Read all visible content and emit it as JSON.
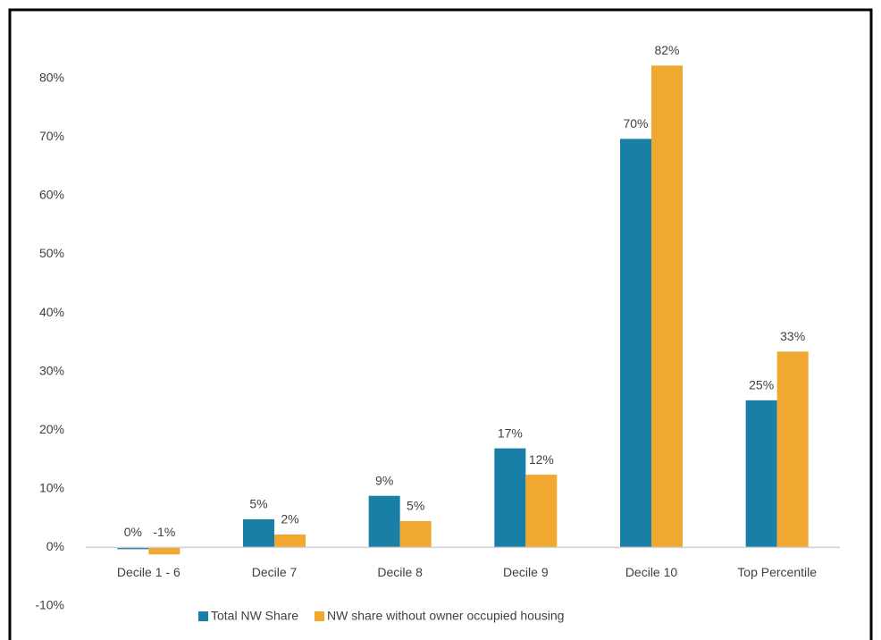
{
  "chart_data": {
    "type": "bar",
    "categories": [
      "Decile 1 - 6",
      "Decile 7",
      "Decile 8",
      "Decile 9",
      "Decile 10",
      "Top Percentile"
    ],
    "series": [
      {
        "name": "Total NW Share",
        "color": "#1a7fa6",
        "values": [
          -0.3,
          4.8,
          8.8,
          16.9,
          69.7,
          25.1
        ],
        "value_labels": [
          "0%",
          "5%",
          "9%",
          "17%",
          "70%",
          "25%"
        ]
      },
      {
        "name": "NW share without owner occupied housing",
        "color": "#f0a830",
        "values": [
          -1.2,
          2.2,
          4.5,
          12.4,
          82.2,
          33.4
        ],
        "value_labels": [
          "-1%",
          "2%",
          "5%",
          "12%",
          "82%",
          "33%"
        ]
      }
    ],
    "ylim": [
      -10,
      85
    ],
    "yticks": [
      {
        "value": -10,
        "label": "-10%"
      },
      {
        "value": 0,
        "label": "0%"
      },
      {
        "value": 10,
        "label": "10%"
      },
      {
        "value": 20,
        "label": "20%"
      },
      {
        "value": 30,
        "label": "30%"
      },
      {
        "value": 40,
        "label": "40%"
      },
      {
        "value": 50,
        "label": "50%"
      },
      {
        "value": 60,
        "label": "60%"
      },
      {
        "value": 70,
        "label": "70%"
      },
      {
        "value": 80,
        "label": "80%"
      }
    ],
    "grid": false,
    "legend": "bottom"
  }
}
